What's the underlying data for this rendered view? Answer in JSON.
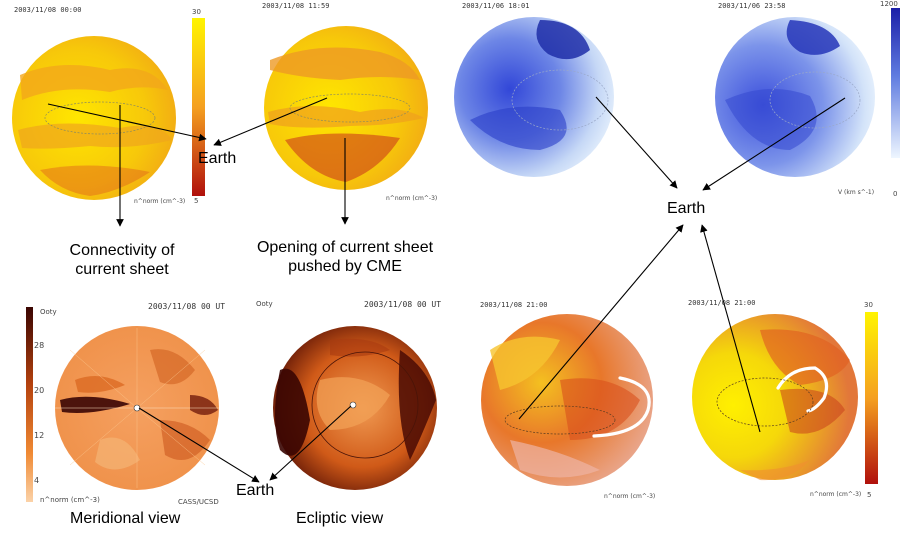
{
  "panels": {
    "top_left": {
      "timestamp_1": "2003/11/08 00:00",
      "timestamp_2": "2003/11/08 11:59",
      "colorbar_max": "30",
      "colorbar_min": "5",
      "unit_label_1": "n^norm (cm^-3)",
      "unit_label_2": "n^norm (cm^-3)",
      "earth_label": "Earth",
      "callout_left": [
        "Connectivity of",
        "current sheet"
      ],
      "callout_right": [
        "Opening of current sheet",
        "pushed by CME"
      ]
    },
    "top_right": {
      "timestamp_1": "2003/11/06 18:01",
      "timestamp_2": "2003/11/06 23:58",
      "colorbar_max": "1200",
      "colorbar_min": "0",
      "unit_label": "V (km s^-1)",
      "earth_label": "Earth"
    },
    "bottom_left": {
      "title_left": "Ooty",
      "title_right": "Ooty",
      "timestamp_1": "2003/11/08 00 UT",
      "timestamp_2": "2003/11/08 00 UT",
      "colorbar_ticks": [
        "28",
        "20",
        "12",
        "4"
      ],
      "unit_label": "n^norm (cm^-3)",
      "credit": "CASS/UCSD",
      "earth_label": "Earth",
      "view_left": "Meridional view",
      "view_right": "Ecliptic view"
    },
    "bottom_right": {
      "timestamp_1": "2003/11/08 21:00",
      "timestamp_2": "2003/11/08 21:00",
      "colorbar_max": "30",
      "colorbar_min": "5",
      "unit_label_1": "n^norm (cm^-3)",
      "unit_label_2": "n^norm (cm^-3)"
    }
  },
  "colors": {
    "yellow": "#f5e400",
    "orange": "#e88a20",
    "red": "#b51a10",
    "blue_dark": "#2c3fd0",
    "blue_light": "#e8f1fb",
    "brown": "#5a1205",
    "sand": "#f6b070"
  }
}
